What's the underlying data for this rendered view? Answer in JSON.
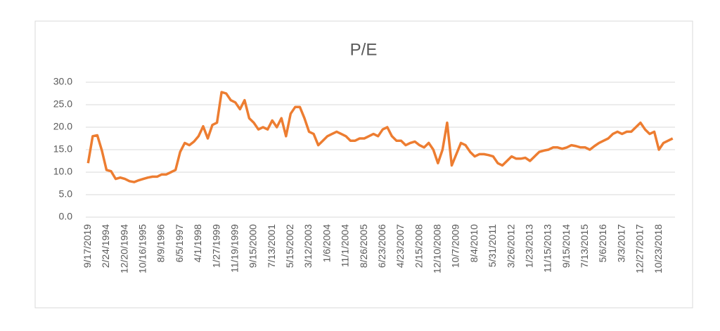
{
  "chart_data": {
    "type": "line",
    "title": "P/E",
    "categories": [
      "9/17/2019",
      null,
      null,
      null,
      "2/24/1994",
      null,
      null,
      null,
      "12/20/1994",
      null,
      null,
      null,
      "10/16/1995",
      null,
      null,
      null,
      "8/9/1996",
      null,
      null,
      null,
      "6/5/1997",
      null,
      null,
      null,
      "4/1/1998",
      null,
      null,
      null,
      "1/27/1999",
      null,
      null,
      null,
      "11/19/1999",
      null,
      null,
      null,
      "9/15/2000",
      null,
      null,
      null,
      "7/13/2001",
      null,
      null,
      null,
      "5/15/2002",
      null,
      null,
      null,
      "3/12/2003",
      null,
      null,
      null,
      "1/6/2004",
      null,
      null,
      null,
      "11/1/2004",
      null,
      null,
      null,
      "8/26/2005",
      null,
      null,
      null,
      "6/23/2006",
      null,
      null,
      null,
      "4/23/2007",
      null,
      null,
      null,
      "2/15/2008",
      null,
      null,
      null,
      "12/10/2008",
      null,
      null,
      null,
      "10/7/2009",
      null,
      null,
      null,
      "8/4/2010",
      null,
      null,
      null,
      "5/31/2011",
      null,
      null,
      null,
      "3/26/2012",
      null,
      null,
      null,
      "1/23/2013",
      null,
      null,
      null,
      "11/15/2013",
      null,
      null,
      null,
      "9/15/2014",
      null,
      null,
      null,
      "7/13/2015",
      null,
      null,
      null,
      "5/6/2016",
      null,
      null,
      null,
      "3/3/2017",
      null,
      null,
      null,
      "12/27/2017",
      null,
      null,
      null,
      "10/23/2018",
      null,
      null,
      null
    ],
    "values": [
      12,
      18,
      18.2,
      14.8,
      10.5,
      10.2,
      8.5,
      8.8,
      8.5,
      8,
      7.8,
      8.2,
      8.5,
      8.8,
      9,
      9,
      9.5,
      9.5,
      10,
      10.5,
      14.5,
      16.5,
      16,
      16.8,
      18,
      20.2,
      17.5,
      20.5,
      21,
      27.8,
      27.5,
      26,
      25.5,
      24,
      26,
      22,
      21,
      19.5,
      20,
      19.5,
      21.5,
      20,
      22,
      18,
      23,
      24.5,
      24.5,
      22,
      19,
      18.5,
      16,
      17,
      18,
      18.5,
      19,
      18.5,
      18,
      17,
      17,
      17.5,
      17.5,
      18,
      18.5,
      18,
      19.5,
      20,
      18,
      17,
      17,
      16,
      16.5,
      16.8,
      16,
      15.5,
      16.5,
      15,
      12,
      15,
      21,
      11.5,
      14,
      16.5,
      16,
      14.5,
      13.5,
      14,
      14,
      13.8,
      13.5,
      12,
      11.5,
      12.5,
      13.5,
      13,
      13,
      13.2,
      12.5,
      13.5,
      14.5,
      14.8,
      15,
      15.5,
      15.5,
      15.2,
      15.5,
      16,
      15.8,
      15.5,
      15.5,
      15,
      15.8,
      16.5,
      17,
      17.5,
      18.5,
      19,
      18.5,
      19,
      19,
      20,
      21,
      19.5,
      18.5,
      19,
      15,
      16.5,
      17,
      17.5
    ],
    "color": "#ed7d31",
    "ylim": [
      0,
      30
    ],
    "yticks": [
      {
        "value": 0,
        "label": "0.0"
      },
      {
        "value": 5,
        "label": "5.0"
      },
      {
        "value": 10,
        "label": "10.0"
      },
      {
        "value": 15,
        "label": "15.0"
      },
      {
        "value": 20,
        "label": "20.0"
      },
      {
        "value": 25,
        "label": "25.0"
      },
      {
        "value": 30,
        "label": "30.0"
      }
    ],
    "grid": true
  }
}
